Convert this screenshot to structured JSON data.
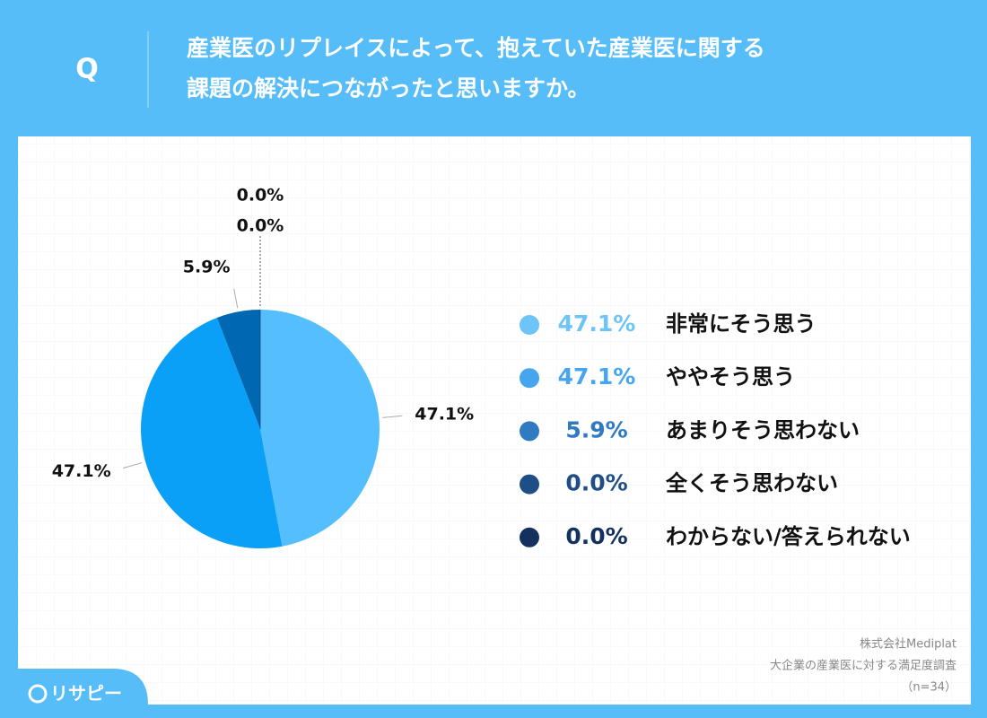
{
  "q_label": "Q",
  "chart_data": {
    "type": "pie",
    "title": [
      "産業医のリプレイスによって、抱えていた産業医に関する",
      "課題の解決につながったと思いますか。"
    ],
    "categories": [
      "非常にそう思う",
      "ややそう思う",
      "あまりそう思わない",
      "全くそう思わない",
      "わからない/答えられない"
    ],
    "values": [
      47.1,
      47.1,
      5.9,
      0.0,
      0.0
    ],
    "value_labels": [
      "47.1%",
      "47.1%",
      "5.9%",
      "0.0%",
      "0.0%"
    ],
    "colors": [
      "#55bffd",
      "#0aa0f7",
      "#0068b2",
      "#1f4e86",
      "#13305e"
    ],
    "legend_colors": [
      "#6cc4f8",
      "#45a6ef",
      "#2f7ac0",
      "#1f4e86",
      "#13305e"
    ]
  },
  "source": [
    "株式会社Mediplat",
    "大企業の産業医に対する満足度調査",
    "（n=34）"
  ],
  "logo": "リサピー"
}
